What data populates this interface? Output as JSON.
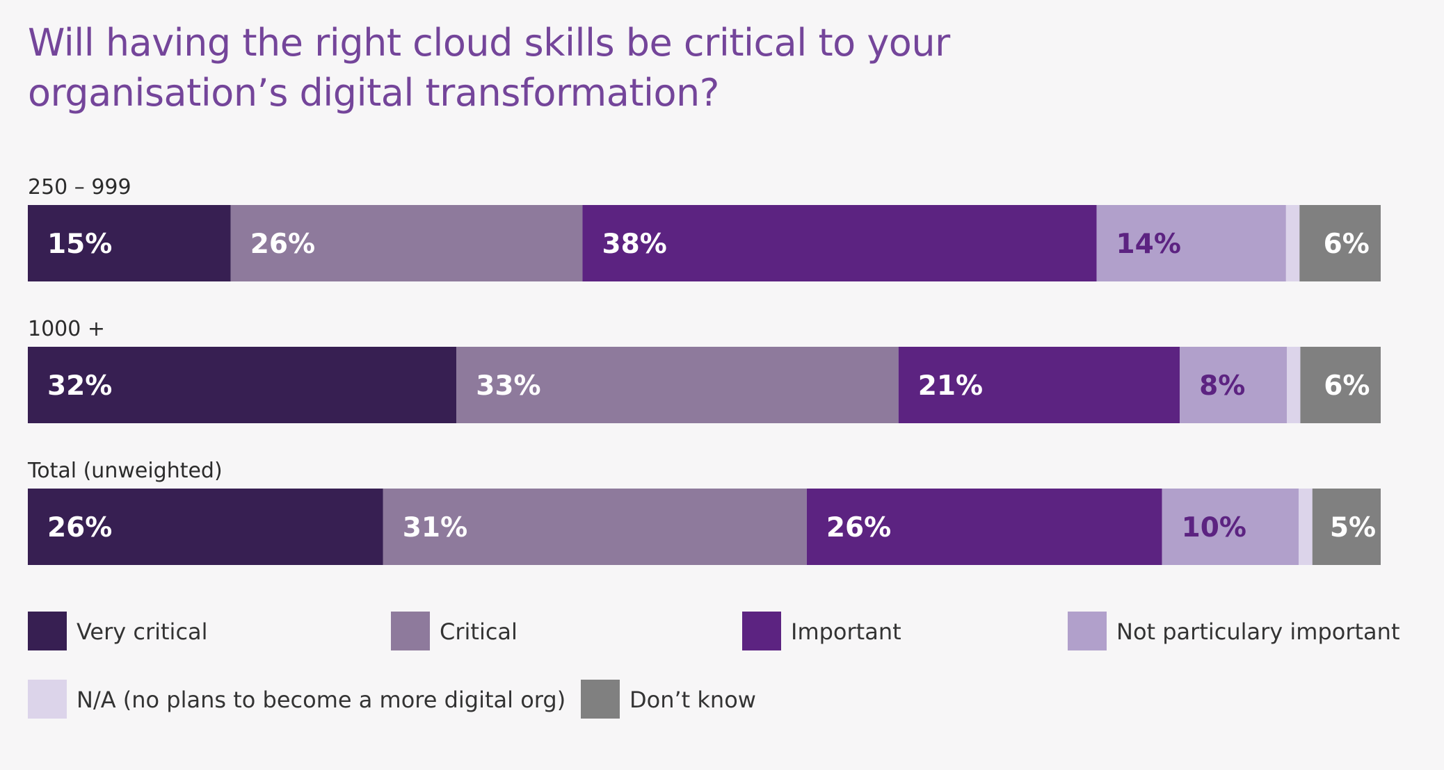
{
  "chart_data": {
    "type": "bar",
    "orientation": "horizontal",
    "stacked": true,
    "title": "Will having the right cloud skills be critical to your organisation’s digital transformation?",
    "categories": [
      "250 – 999",
      "1000 +",
      "Total (unweighted)"
    ],
    "series": [
      {
        "name": "Very critical",
        "color": "#371f52",
        "label_color": "#ffffff",
        "values": [
          15,
          32,
          26
        ],
        "labels": [
          "15%",
          "32%",
          "26%"
        ]
      },
      {
        "name": "Critical",
        "color": "#8e7a9c",
        "label_color": "#ffffff",
        "values": [
          26,
          33,
          31
        ],
        "labels": [
          "26%",
          "33%",
          "31%"
        ]
      },
      {
        "name": "Important",
        "color": "#5c2381",
        "label_color": "#ffffff",
        "values": [
          38,
          21,
          26
        ],
        "labels": [
          "38%",
          "21%",
          "26%"
        ]
      },
      {
        "name": "Not particulary important",
        "color": "#b1a0cb",
        "label_color": "#5c2381",
        "values": [
          14,
          8,
          10
        ],
        "labels": [
          "14%",
          "8%",
          "10%"
        ]
      },
      {
        "name": "N/A (no plans to become a more digital org)",
        "color": "#dcd4ea",
        "label_color": "#5c2381",
        "values": [
          1,
          1,
          1
        ],
        "labels": [
          "",
          "",
          ""
        ]
      },
      {
        "name": "Don’t know",
        "color": "#808080",
        "label_color": "#ffffff",
        "values": [
          6,
          6,
          5
        ],
        "labels": [
          "6%",
          "6%",
          "5%"
        ]
      }
    ],
    "xlim": [
      0,
      100
    ],
    "grid": false,
    "legend_position": "bottom"
  }
}
